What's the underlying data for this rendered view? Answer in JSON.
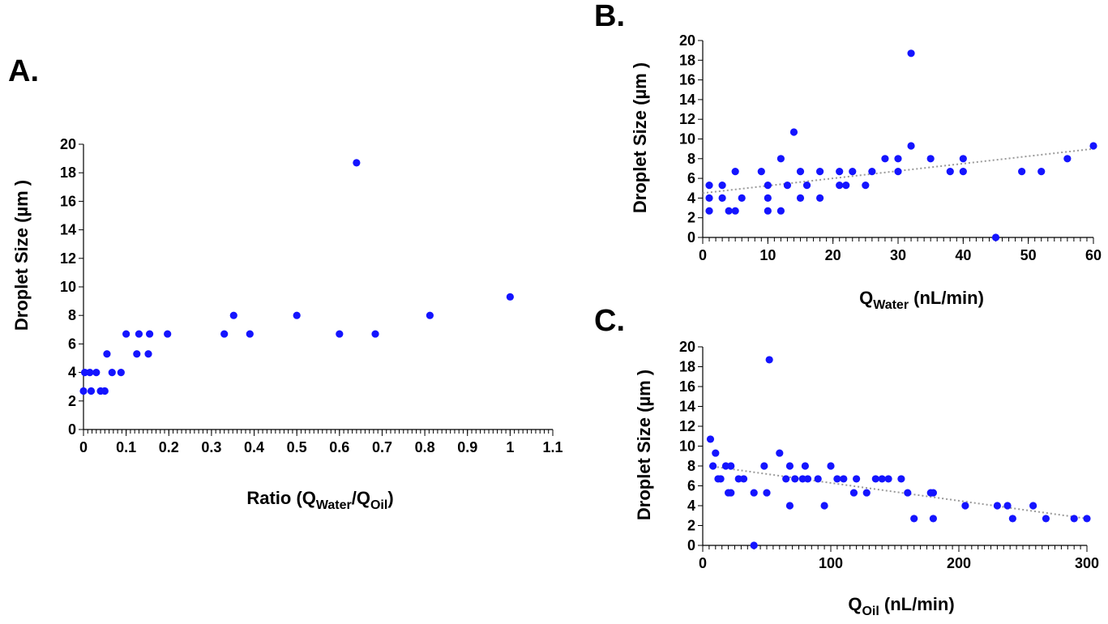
{
  "panels": {
    "A": {
      "letter": "A."
    },
    "B": {
      "letter": "B."
    },
    "C": {
      "letter": "C."
    }
  },
  "chart_data": [
    {
      "id": "A",
      "type": "scatter",
      "xlabel": {
        "base": "Ratio (Q",
        "sub1": "Water",
        "mid": "/Q",
        "sub2": "Oil",
        "end": ")"
      },
      "ylabel": "Droplet Size (µm )",
      "xlim": [
        0,
        1.1
      ],
      "ylim": [
        0,
        20
      ],
      "x_ticks": [
        "0",
        "0.1",
        "0.2",
        "0.3",
        "0.4",
        "0.5",
        "0.6",
        "0.7",
        "0.8",
        "0.9",
        "1",
        "1.1"
      ],
      "y_ticks": [
        "0",
        "2",
        "4",
        "6",
        "8",
        "10",
        "12",
        "14",
        "16",
        "18",
        "20"
      ],
      "marker_color": "#1414ff",
      "points": [
        [
          0.0,
          2.7
        ],
        [
          0.003,
          4.0
        ],
        [
          0.015,
          4.0
        ],
        [
          0.018,
          2.7
        ],
        [
          0.03,
          4.0
        ],
        [
          0.04,
          2.7
        ],
        [
          0.05,
          2.7
        ],
        [
          0.055,
          5.3
        ],
        [
          0.067,
          4.0
        ],
        [
          0.088,
          4.0
        ],
        [
          0.1,
          6.7
        ],
        [
          0.125,
          5.3
        ],
        [
          0.13,
          6.7
        ],
        [
          0.152,
          5.3
        ],
        [
          0.155,
          6.7
        ],
        [
          0.197,
          6.7
        ],
        [
          0.33,
          6.7
        ],
        [
          0.352,
          8.0
        ],
        [
          0.39,
          6.7
        ],
        [
          0.5,
          8.0
        ],
        [
          0.6,
          6.7
        ],
        [
          0.64,
          18.7
        ],
        [
          0.684,
          6.7
        ],
        [
          0.812,
          8.0
        ],
        [
          1.0,
          9.3
        ]
      ]
    },
    {
      "id": "B",
      "type": "scatter",
      "xlabel": {
        "base": "Q",
        "sub1": "Water",
        "end": " (nL/min)"
      },
      "ylabel": "Droplet Size (µm )",
      "xlim": [
        0,
        60
      ],
      "ylim": [
        0,
        20
      ],
      "x_ticks": [
        "0",
        "10",
        "20",
        "30",
        "40",
        "50",
        "60"
      ],
      "y_ticks": [
        "0",
        "2",
        "4",
        "6",
        "8",
        "10",
        "12",
        "14",
        "16",
        "18",
        "20"
      ],
      "marker_color": "#1414ff",
      "trendline": {
        "style": "dotted",
        "color": "#9a9a9a",
        "from": [
          0,
          4.5
        ],
        "to": [
          60,
          9.0
        ]
      },
      "points": [
        [
          1,
          5.3
        ],
        [
          1,
          4.0
        ],
        [
          1,
          2.7
        ],
        [
          3,
          5.3
        ],
        [
          3,
          4.0
        ],
        [
          4,
          2.7
        ],
        [
          5,
          6.7
        ],
        [
          5,
          2.7
        ],
        [
          6,
          4.0
        ],
        [
          9,
          6.7
        ],
        [
          10,
          5.3
        ],
        [
          10,
          4.0
        ],
        [
          10,
          2.7
        ],
        [
          12,
          8.0
        ],
        [
          12,
          2.7
        ],
        [
          13,
          5.3
        ],
        [
          14,
          10.7
        ],
        [
          15,
          6.7
        ],
        [
          15,
          4.0
        ],
        [
          16,
          5.3
        ],
        [
          18,
          6.7
        ],
        [
          18,
          4.0
        ],
        [
          21,
          6.7
        ],
        [
          21,
          5.3
        ],
        [
          22,
          5.3
        ],
        [
          23,
          6.7
        ],
        [
          25,
          5.3
        ],
        [
          26,
          6.7
        ],
        [
          28,
          8.0
        ],
        [
          30,
          8.0
        ],
        [
          30,
          6.7
        ],
        [
          32,
          18.7
        ],
        [
          32,
          9.3
        ],
        [
          35,
          8.0
        ],
        [
          38,
          6.7
        ],
        [
          40,
          8.0
        ],
        [
          40,
          6.7
        ],
        [
          45,
          0.0
        ],
        [
          49,
          6.7
        ],
        [
          52,
          6.7
        ],
        [
          56,
          8.0
        ],
        [
          60,
          9.3
        ]
      ]
    },
    {
      "id": "C",
      "type": "scatter",
      "xlabel": {
        "base": "Q",
        "sub1": "Oil",
        "end": " (nL/min)"
      },
      "ylabel": "Droplet Size (µm )",
      "xlim": [
        0,
        300
      ],
      "ylim": [
        0,
        20
      ],
      "x_ticks": [
        "0",
        "100",
        "200",
        "300"
      ],
      "y_ticks": [
        "0",
        "2",
        "4",
        "6",
        "8",
        "10",
        "12",
        "14",
        "16",
        "18",
        "20"
      ],
      "marker_color": "#1414ff",
      "trendline": {
        "style": "dotted",
        "color": "#9a9a9a",
        "from": [
          5,
          8.0
        ],
        "to": [
          300,
          2.7
        ]
      },
      "points": [
        [
          6,
          10.7
        ],
        [
          8,
          8.0
        ],
        [
          10,
          9.3
        ],
        [
          12,
          6.7
        ],
        [
          14,
          6.7
        ],
        [
          18,
          8.0
        ],
        [
          20,
          5.3
        ],
        [
          22,
          8.0
        ],
        [
          22,
          5.3
        ],
        [
          28,
          6.7
        ],
        [
          32,
          6.7
        ],
        [
          40,
          5.3
        ],
        [
          40,
          0.0
        ],
        [
          48,
          8.0
        ],
        [
          50,
          5.3
        ],
        [
          52,
          18.7
        ],
        [
          60,
          9.3
        ],
        [
          65,
          6.7
        ],
        [
          68,
          8.0
        ],
        [
          68,
          4.0
        ],
        [
          72,
          6.7
        ],
        [
          78,
          6.7
        ],
        [
          80,
          8.0
        ],
        [
          82,
          6.7
        ],
        [
          90,
          6.7
        ],
        [
          95,
          4.0
        ],
        [
          100,
          8.0
        ],
        [
          105,
          6.7
        ],
        [
          110,
          6.7
        ],
        [
          118,
          5.3
        ],
        [
          120,
          6.7
        ],
        [
          128,
          5.3
        ],
        [
          135,
          6.7
        ],
        [
          140,
          6.7
        ],
        [
          145,
          6.7
        ],
        [
          155,
          6.7
        ],
        [
          160,
          5.3
        ],
        [
          165,
          2.7
        ],
        [
          178,
          5.3
        ],
        [
          180,
          5.3
        ],
        [
          180,
          2.7
        ],
        [
          205,
          4.0
        ],
        [
          230,
          4.0
        ],
        [
          238,
          4.0
        ],
        [
          242,
          2.7
        ],
        [
          258,
          4.0
        ],
        [
          268,
          2.7
        ],
        [
          290,
          2.7
        ],
        [
          300,
          2.7
        ]
      ]
    }
  ]
}
